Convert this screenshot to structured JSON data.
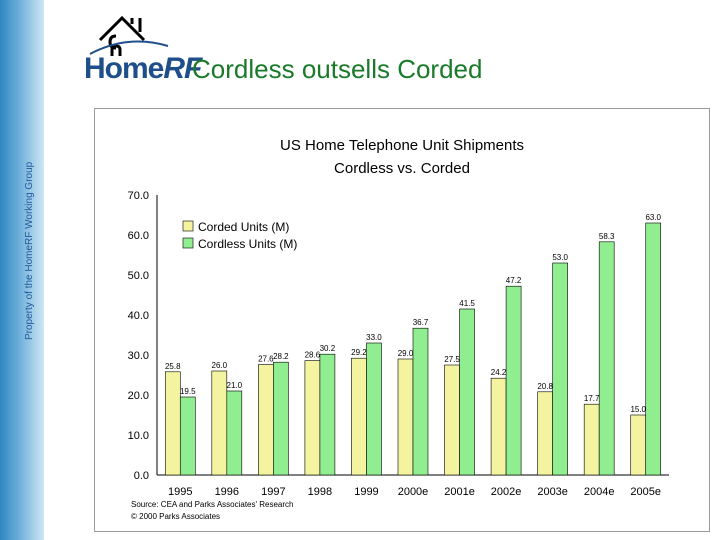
{
  "side_caption": "Property of the HomeRF Working Group",
  "logo": {
    "text_home": "Home",
    "text_rf": "RF"
  },
  "slide_title": "Cordless outsells Corded",
  "colors": {
    "corded": "#f4f4a0",
    "cordless": "#90ee90",
    "title": "#1a7a2a",
    "logo": "#1f4f8a"
  },
  "chart_data": {
    "type": "bar",
    "title": "US Home Telephone Unit Shipments",
    "subtitle": "Cordless vs. Corded",
    "categories": [
      "1995",
      "1996",
      "1997",
      "1998",
      "1999",
      "2000e",
      "2001e",
      "2002e",
      "2003e",
      "2004e",
      "2005e"
    ],
    "series": [
      {
        "name": "Corded Units (M)",
        "values": [
          25.8,
          26.0,
          27.6,
          28.6,
          29.2,
          29.0,
          27.5,
          24.2,
          20.8,
          17.7,
          15.0
        ]
      },
      {
        "name": "Cordless Units (M)",
        "values": [
          19.5,
          21.0,
          28.2,
          30.2,
          33.0,
          36.7,
          41.5,
          47.2,
          53.0,
          58.3,
          63.0
        ]
      }
    ],
    "ylim": [
      0,
      70
    ],
    "yticks": [
      "0.0",
      "10.0",
      "20.0",
      "30.0",
      "40.0",
      "50.0",
      "60.0",
      "70.0"
    ],
    "xlabel": "",
    "ylabel": "",
    "legend_position": "top-left",
    "grid": false,
    "source_lines": [
      "Source: CEA and Parks Associates' Research",
      "© 2000 Parks Associates"
    ]
  }
}
